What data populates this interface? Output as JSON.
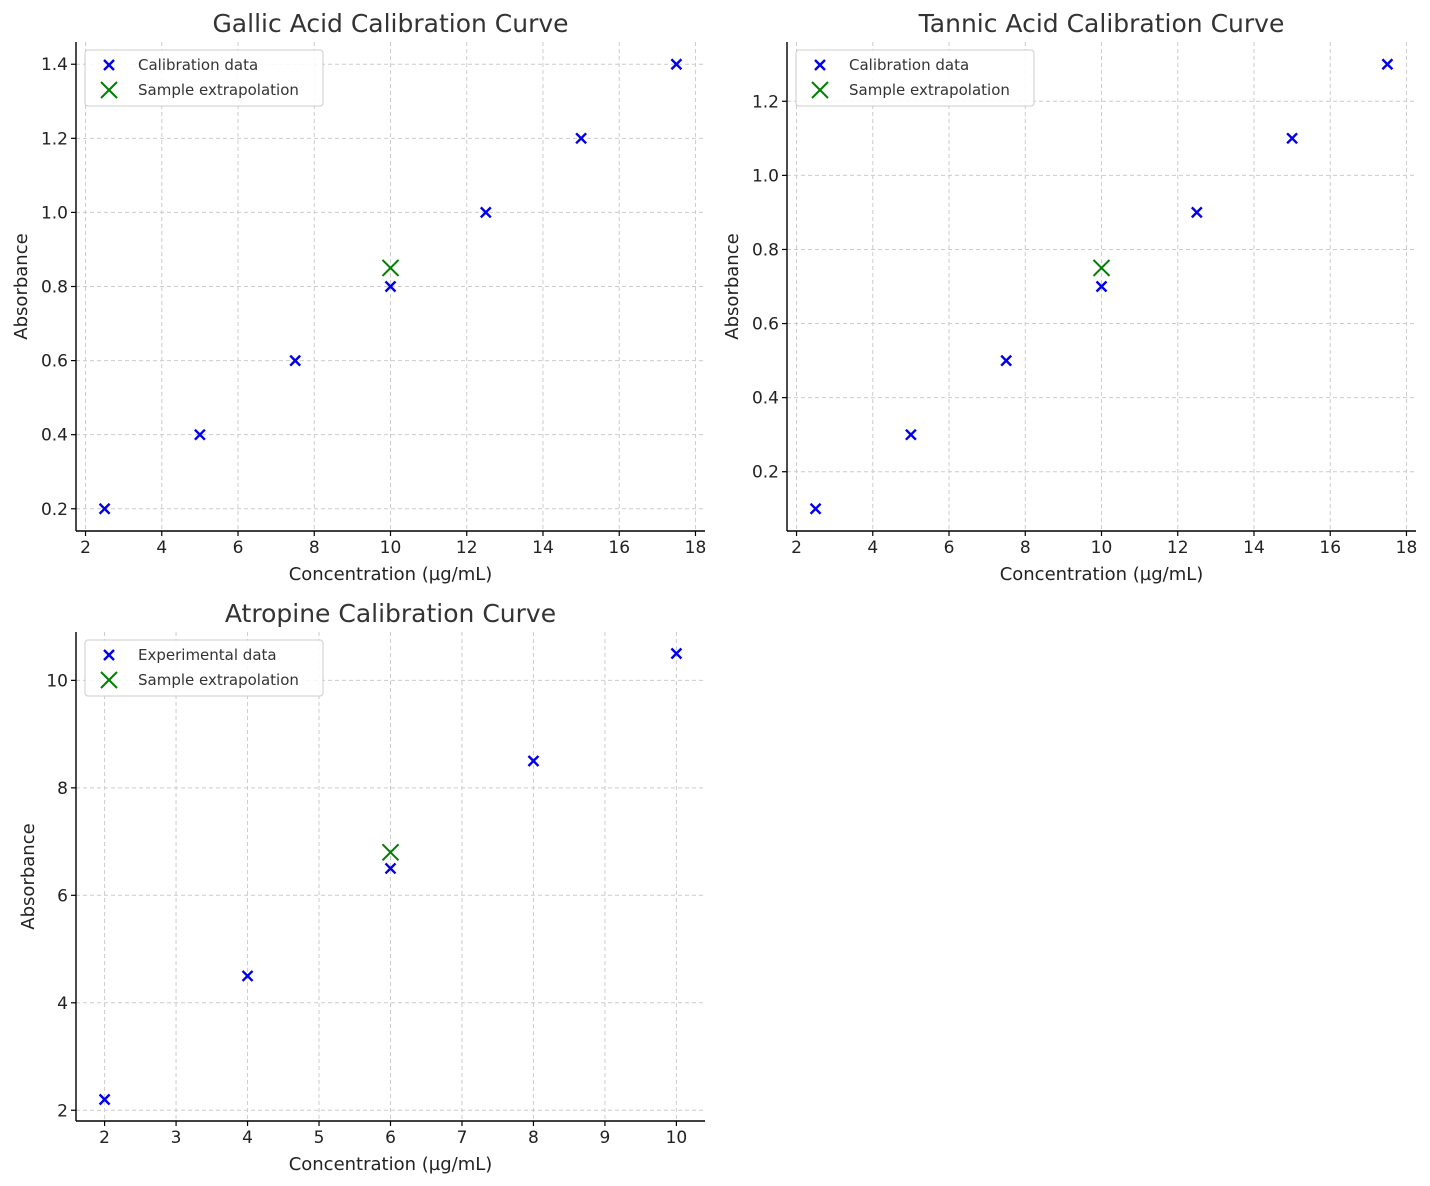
{
  "colors": {
    "calibration": "#0000ee",
    "sample": "#008000"
  },
  "chart_data": [
    {
      "type": "scatter",
      "title": "Gallic Acid Calibration Curve",
      "xlabel": "Concentration (µg/mL)",
      "ylabel": "Absorbance",
      "xlim": [
        1.75,
        18.25
      ],
      "ylim": [
        0.14,
        1.46
      ],
      "xticks": [
        2,
        4,
        6,
        8,
        10,
        12,
        14,
        16,
        18
      ],
      "yticks": [
        0.2,
        0.4,
        0.6,
        0.8,
        1.0,
        1.2,
        1.4
      ],
      "xtick_labels": [
        "2",
        "4",
        "6",
        "8",
        "10",
        "12",
        "14",
        "16",
        "18"
      ],
      "ytick_labels": [
        "0.2",
        "0.4",
        "0.6",
        "0.8",
        "1.0",
        "1.2",
        "1.4"
      ],
      "grid": true,
      "legend": "top-left",
      "series": [
        {
          "name": "Calibration data",
          "marker": "x",
          "color": "#0000ee",
          "x": [
            2.5,
            5,
            7.5,
            10,
            12.5,
            15,
            17.5
          ],
          "y": [
            0.2,
            0.4,
            0.6,
            0.8,
            1.0,
            1.2,
            1.4
          ]
        },
        {
          "name": "Sample extrapolation",
          "marker": "x-large",
          "color": "#008000",
          "x": [
            10
          ],
          "y": [
            0.85
          ]
        }
      ]
    },
    {
      "type": "scatter",
      "title": "Tannic Acid Calibration Curve",
      "xlabel": "Concentration (µg/mL)",
      "ylabel": "Absorbance",
      "xlim": [
        1.75,
        18.25
      ],
      "ylim": [
        0.04,
        1.36
      ],
      "xticks": [
        2,
        4,
        6,
        8,
        10,
        12,
        14,
        16,
        18
      ],
      "yticks": [
        0.2,
        0.4,
        0.6,
        0.8,
        1.0,
        1.2
      ],
      "xtick_labels": [
        "2",
        "4",
        "6",
        "8",
        "10",
        "12",
        "14",
        "16",
        "18"
      ],
      "ytick_labels": [
        "0.2",
        "0.4",
        "0.6",
        "0.8",
        "1.0",
        "1.2"
      ],
      "grid": true,
      "legend": "top-left",
      "series": [
        {
          "name": "Calibration data",
          "marker": "x",
          "color": "#0000ee",
          "x": [
            2.5,
            5,
            7.5,
            10,
            12.5,
            15,
            17.5
          ],
          "y": [
            0.1,
            0.3,
            0.5,
            0.7,
            0.9,
            1.1,
            1.3
          ]
        },
        {
          "name": "Sample extrapolation",
          "marker": "x-large",
          "color": "#008000",
          "x": [
            10
          ],
          "y": [
            0.75
          ]
        }
      ]
    },
    {
      "type": "scatter",
      "title": "Atropine Calibration Curve",
      "xlabel": "Concentration (µg/mL)",
      "ylabel": "Absorbance",
      "xlim": [
        1.6,
        10.4
      ],
      "ylim": [
        1.8,
        10.9
      ],
      "xticks": [
        2,
        3,
        4,
        5,
        6,
        7,
        8,
        9,
        10
      ],
      "yticks": [
        2,
        4,
        6,
        8,
        10
      ],
      "xtick_labels": [
        "2",
        "3",
        "4",
        "5",
        "6",
        "7",
        "8",
        "9",
        "10"
      ],
      "ytick_labels": [
        "2",
        "4",
        "6",
        "8",
        "10"
      ],
      "grid": true,
      "legend": "top-left",
      "series": [
        {
          "name": "Experimental data",
          "marker": "x",
          "color": "#0000ee",
          "x": [
            2,
            4,
            6,
            8,
            10
          ],
          "y": [
            2.2,
            4.5,
            6.5,
            8.5,
            10.5
          ]
        },
        {
          "name": "Sample extrapolation",
          "marker": "x-large",
          "color": "#008000",
          "x": [
            6
          ],
          "y": [
            6.8
          ]
        }
      ]
    }
  ]
}
